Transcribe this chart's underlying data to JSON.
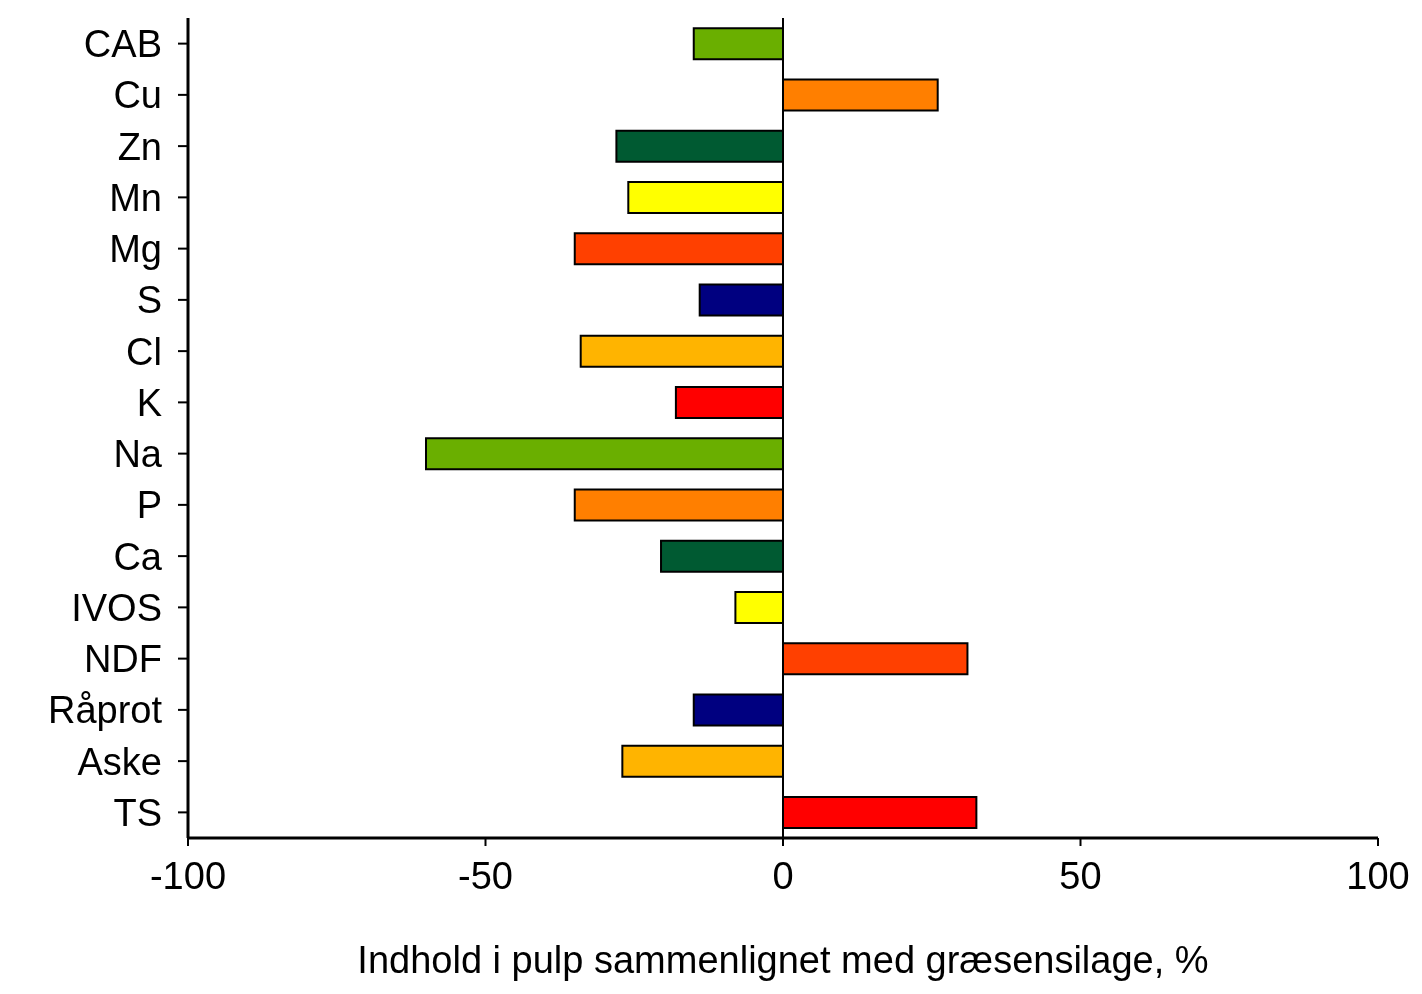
{
  "chart_data": {
    "type": "bar",
    "orientation": "horizontal",
    "xlabel": "Indhold i pulp sammenlignet med græsensilage, %",
    "categories": [
      "CAB",
      "Cu",
      "Zn",
      "Mn",
      "Mg",
      "S",
      "Cl",
      "K",
      "Na",
      "P",
      "Ca",
      "IVOS",
      "NDF",
      "Råprot",
      "Aske",
      "TS"
    ],
    "values": [
      -15,
      26,
      -28,
      -26,
      -35,
      -14,
      -34,
      -18,
      -60,
      -35,
      -20.5,
      -8,
      31,
      -15,
      -27,
      32.5
    ],
    "colors": [
      "#6aaf00",
      "#ff7f00",
      "#005a32",
      "#ffff00",
      "#ff4000",
      "#000080",
      "#ffb400",
      "#ff0000",
      "#6aaf00",
      "#ff7f00",
      "#005a32",
      "#ffff00",
      "#ff4000",
      "#000080",
      "#ffb400",
      "#ff0000"
    ],
    "xlim": [
      -100,
      100
    ],
    "xticks": [
      -100,
      -50,
      0,
      50,
      100
    ],
    "ref_lines": [
      {
        "axis": "x",
        "value": 0,
        "color": "#000000"
      }
    ],
    "grid": false,
    "legend": false
  }
}
